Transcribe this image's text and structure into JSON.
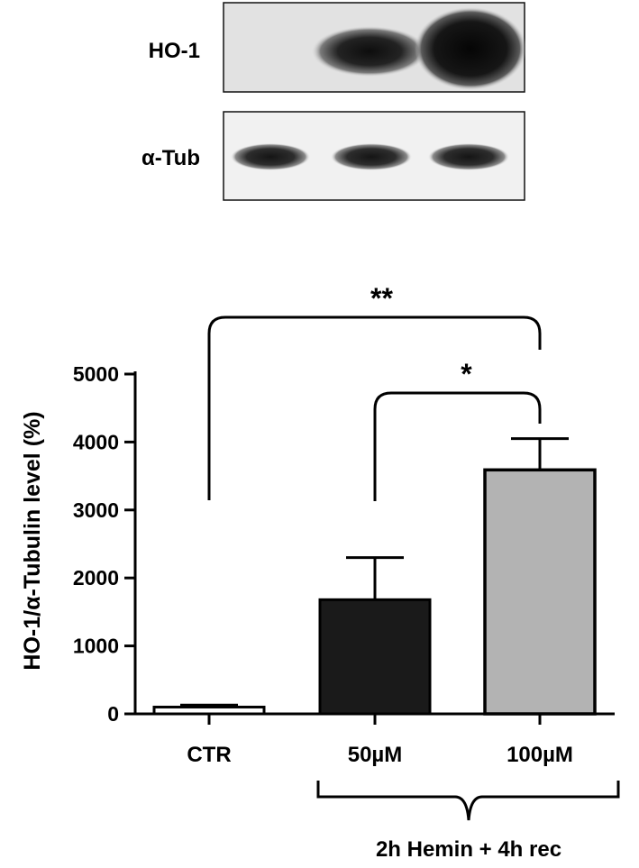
{
  "blot": {
    "rows": [
      {
        "label": "HO-1"
      },
      {
        "label": "α-Tub"
      }
    ]
  },
  "chart_data": {
    "type": "bar",
    "categories": [
      "CTR",
      "50µM",
      "100µM"
    ],
    "values": [
      100,
      1680,
      3590
    ],
    "errors": [
      30,
      620,
      460
    ],
    "bar_colors": [
      "#ffffff",
      "#1a1a1a",
      "#b3b3b3"
    ],
    "ylabel": "HO-1/α-Tubulin level (%)",
    "ylim": [
      0,
      5000
    ],
    "yticks": [
      0,
      1000,
      2000,
      3000,
      4000,
      5000
    ],
    "grid": false,
    "group_label": "2h Hemin + 4h rec",
    "group_members": [
      "50µM",
      "100µM"
    ],
    "significance": [
      {
        "from": "CTR",
        "to": "100µM",
        "label": "**"
      },
      {
        "from": "50µM",
        "to": "100µM",
        "label": "*"
      }
    ]
  }
}
